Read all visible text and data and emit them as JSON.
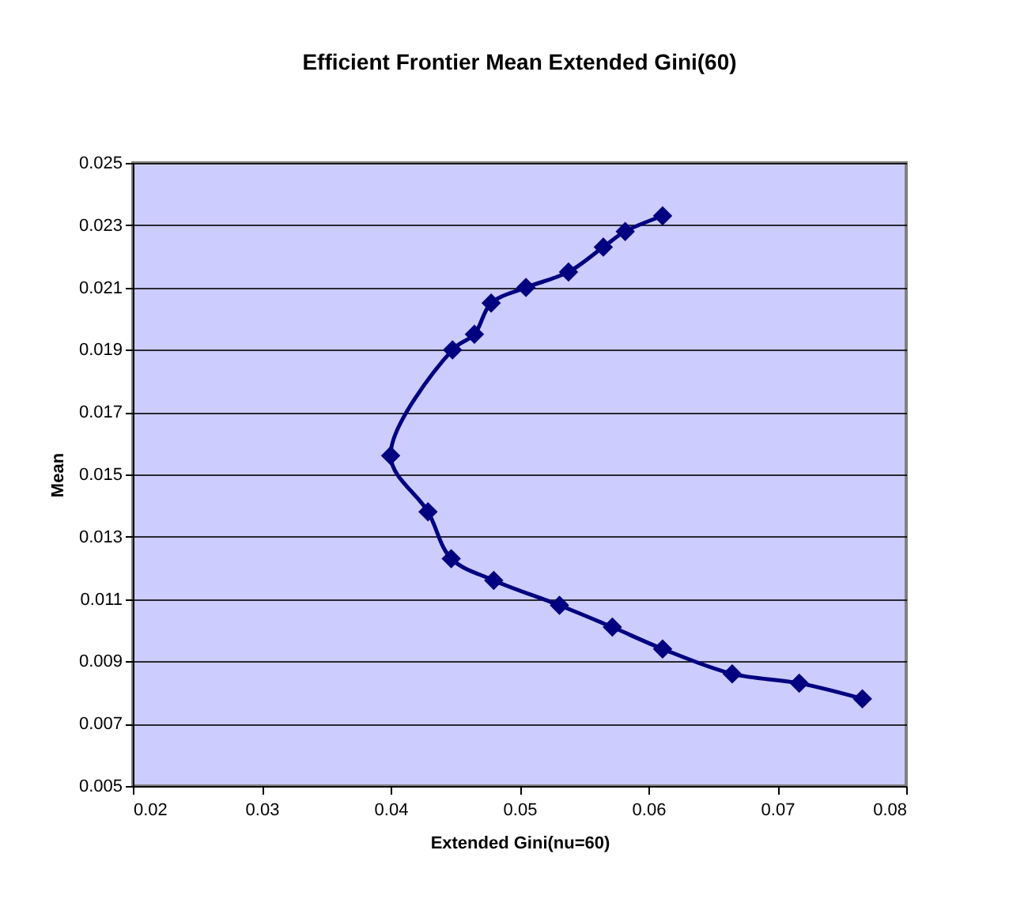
{
  "chart_data": {
    "type": "line",
    "title": "Efficient Frontier Mean Extended Gini(60)",
    "xlabel": "Extended Gini(nu=60)",
    "ylabel": "Mean",
    "series": [
      {
        "color": "#000080",
        "x": [
          0.0766,
          0.0717,
          0.0665,
          0.0611,
          0.0572,
          0.0531,
          0.048,
          0.0447,
          0.0429,
          0.04,
          0.0448,
          0.0465,
          0.0478,
          0.0505,
          0.0538,
          0.0565,
          0.0582,
          0.0611
        ],
        "values": [
          0.0078,
          0.0083,
          0.0086,
          0.0094,
          0.0101,
          0.0108,
          0.0116,
          0.0123,
          0.0138,
          0.0156,
          0.019,
          0.0195,
          0.0205,
          0.021,
          0.0215,
          0.0223,
          0.0228,
          0.0233
        ]
      }
    ],
    "xlim": [
      0.02,
      0.08
    ],
    "xticks": [
      0.02,
      0.03,
      0.04,
      0.05,
      0.06,
      0.07,
      0.08
    ],
    "ylim": [
      0.005,
      0.025
    ],
    "yticks": [
      0.005,
      0.007,
      0.009,
      0.011,
      0.013,
      0.015,
      0.017,
      0.019,
      0.021,
      0.023,
      0.025
    ],
    "grid": "y",
    "legend": false,
    "marker": "diamond",
    "line_style": "solid"
  }
}
